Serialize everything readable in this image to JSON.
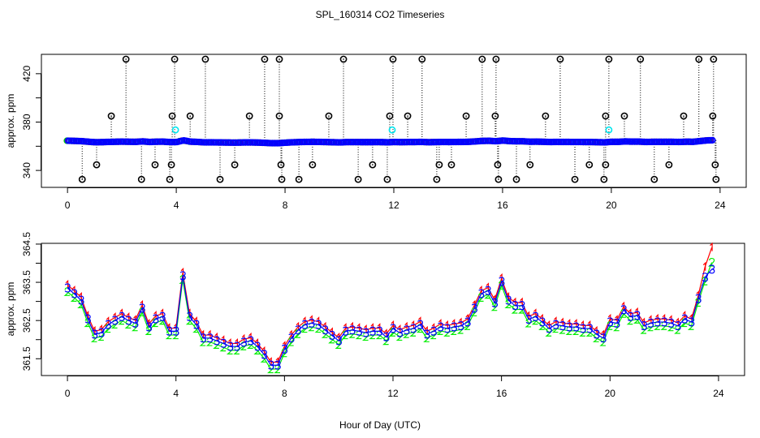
{
  "title": "SPL_160314  CO2 Timeseries",
  "xlabel": "Hour of Day (UTC)",
  "chart_data": [
    {
      "type": "scatter",
      "name": "top-panel",
      "ylabel": "approx. ppm",
      "xlim": [
        -0.96,
        24.96
      ],
      "ylim": [
        326,
        436
      ],
      "xticks": [
        "0",
        "4",
        "8",
        "12",
        "16",
        "20",
        "24"
      ],
      "xtick_values": [
        0,
        4,
        8,
        12,
        16,
        20,
        24
      ],
      "yticks": [
        340,
        360,
        380,
        400,
        420
      ],
      "ytick_labels": [
        "340",
        "",
        "380",
        "",
        "420"
      ],
      "baseline_note_series": "uses series 3 values of bottom panel",
      "outliers": {
        "color": "#000000",
        "x": [
          2.15,
          3.94,
          5.07,
          7.25,
          7.79,
          10.15,
          11.97,
          13.04,
          15.25,
          15.76,
          18.12,
          19.91,
          21.07,
          23.22,
          23.76,
          1.61,
          3.85,
          4.51,
          6.69,
          7.79,
          9.61,
          11.85,
          12.51,
          14.66,
          15.73,
          17.58,
          19.79,
          20.48,
          22.66,
          23.73,
          1.07,
          3.22,
          3.82,
          6.15,
          7.85,
          9.01,
          11.22,
          13.67,
          14.12,
          15.82,
          17.01,
          19.19,
          19.79,
          22.12,
          23.82,
          0.54,
          2.72,
          3.76,
          5.61,
          7.88,
          8.51,
          10.69,
          11.76,
          13.58,
          15.85,
          16.51,
          18.66,
          19.73,
          21.58,
          23.85
        ],
        "y": [
          432,
          432,
          432,
          432,
          432,
          432,
          432,
          432,
          432,
          432,
          432,
          432,
          432,
          432,
          432,
          385,
          385,
          385,
          385,
          385,
          385,
          385,
          385,
          385,
          385,
          385,
          385,
          385,
          385,
          385,
          344.7,
          344.7,
          344.7,
          344.7,
          344.7,
          344.7,
          344.7,
          344.7,
          344.7,
          344.7,
          344.7,
          344.7,
          344.7,
          344.7,
          344.7,
          332.6,
          332.6,
          332.6,
          332.6,
          332.6,
          332.6,
          332.6,
          332.6,
          332.6,
          332.6,
          332.6,
          332.6,
          332.6,
          332.6,
          332.6
        ]
      },
      "cyan_points": {
        "color": "#00e5ee",
        "x": [
          3.97,
          11.94,
          19.91
        ],
        "y": [
          373.5,
          373.5,
          373.5
        ]
      },
      "baseline_offset": 1.2
    },
    {
      "type": "line",
      "name": "bottom-panel",
      "ylabel": "approx. ppm",
      "xlim": [
        -0.96,
        24.96
      ],
      "ylim": [
        361.06,
        364.52
      ],
      "xticks": [
        "0",
        "4",
        "8",
        "12",
        "16",
        "20",
        "24"
      ],
      "xtick_values": [
        0,
        4,
        8,
        12,
        16,
        20,
        24
      ],
      "yticks": [
        361.5,
        362,
        362.5,
        363,
        363.5,
        364,
        364.5
      ],
      "ytick_labels": [
        "361.5",
        "",
        "362.5",
        "",
        "363.5",
        "",
        "364.5"
      ],
      "x_start": 0,
      "x_step": 0.25,
      "series": [
        {
          "name": "1",
          "color": "#ff0000",
          "values": [
            363.43,
            363.28,
            363.11,
            362.62,
            362.22,
            362.26,
            362.47,
            362.58,
            362.68,
            362.58,
            362.51,
            362.9,
            362.41,
            362.62,
            362.68,
            362.3,
            362.3,
            363.75,
            362.68,
            362.47,
            362.12,
            362.12,
            362.05,
            361.98,
            361.9,
            361.9,
            362.01,
            362.05,
            361.9,
            361.69,
            361.41,
            361.41,
            361.83,
            362.12,
            362.33,
            362.47,
            362.51,
            362.47,
            362.33,
            362.19,
            362.05,
            362.3,
            362.33,
            362.3,
            362.26,
            362.3,
            362.3,
            362.15,
            362.37,
            362.26,
            362.33,
            362.37,
            362.47,
            362.22,
            362.3,
            362.41,
            362.37,
            362.41,
            362.44,
            362.54,
            362.9,
            363.28,
            363.36,
            363.04,
            363.6,
            363.11,
            362.97,
            362.97,
            362.61,
            362.68,
            362.54,
            362.37,
            362.47,
            362.44,
            362.41,
            362.41,
            362.37,
            362.37,
            362.22,
            362.12,
            362.54,
            362.51,
            362.86,
            362.68,
            362.71,
            362.44,
            362.51,
            362.54,
            362.54,
            362.51,
            362.44,
            362.62,
            362.54,
            363.15,
            363.9,
            364.41
          ]
        },
        {
          "name": "2",
          "color": "#00ee00",
          "values": [
            363.25,
            363.1,
            362.93,
            362.44,
            362.04,
            362.08,
            362.29,
            362.4,
            362.5,
            362.4,
            362.33,
            362.72,
            362.23,
            362.44,
            362.5,
            362.12,
            362.12,
            363.57,
            362.5,
            362.29,
            361.94,
            361.94,
            361.87,
            361.8,
            361.72,
            361.72,
            361.83,
            361.87,
            361.72,
            361.51,
            361.23,
            361.23,
            361.65,
            361.94,
            362.15,
            362.29,
            362.33,
            362.29,
            362.15,
            362.01,
            361.87,
            362.12,
            362.15,
            362.12,
            362.08,
            362.12,
            362.12,
            361.97,
            362.19,
            362.08,
            362.15,
            362.19,
            362.29,
            362.04,
            362.12,
            362.23,
            362.19,
            362.23,
            362.26,
            362.36,
            362.72,
            363.1,
            363.18,
            362.86,
            363.42,
            362.93,
            362.79,
            362.79,
            362.43,
            362.5,
            362.36,
            362.19,
            362.29,
            362.26,
            362.23,
            362.23,
            362.19,
            362.19,
            362.04,
            361.94,
            362.36,
            362.33,
            362.68,
            362.5,
            362.53,
            362.26,
            362.33,
            362.36,
            362.36,
            362.33,
            362.26,
            362.44,
            362.36,
            362.97,
            363.53,
            364.02
          ]
        },
        {
          "name": "3",
          "color": "#0000ff",
          "values": [
            363.35,
            363.2,
            363.03,
            362.54,
            362.14,
            362.18,
            362.39,
            362.5,
            362.6,
            362.5,
            362.43,
            362.82,
            362.33,
            362.54,
            362.6,
            362.22,
            362.22,
            363.67,
            362.6,
            362.39,
            362.04,
            362.04,
            361.97,
            361.9,
            361.82,
            361.82,
            361.93,
            361.97,
            361.82,
            361.61,
            361.33,
            361.33,
            361.75,
            362.04,
            362.25,
            362.39,
            362.43,
            362.39,
            362.25,
            362.11,
            361.97,
            362.22,
            362.25,
            362.22,
            362.18,
            362.22,
            362.22,
            362.07,
            362.29,
            362.18,
            362.25,
            362.29,
            362.39,
            362.14,
            362.22,
            362.33,
            362.29,
            362.33,
            362.36,
            362.46,
            362.82,
            363.2,
            363.28,
            362.96,
            363.52,
            363.03,
            362.89,
            362.89,
            362.53,
            362.6,
            362.46,
            362.29,
            362.39,
            362.36,
            362.33,
            362.33,
            362.29,
            362.29,
            362.14,
            362.04,
            362.46,
            362.43,
            362.78,
            362.6,
            362.63,
            362.36,
            362.43,
            362.46,
            362.46,
            362.43,
            362.36,
            362.54,
            362.46,
            363.07,
            363.63,
            363.84
          ]
        }
      ]
    }
  ]
}
